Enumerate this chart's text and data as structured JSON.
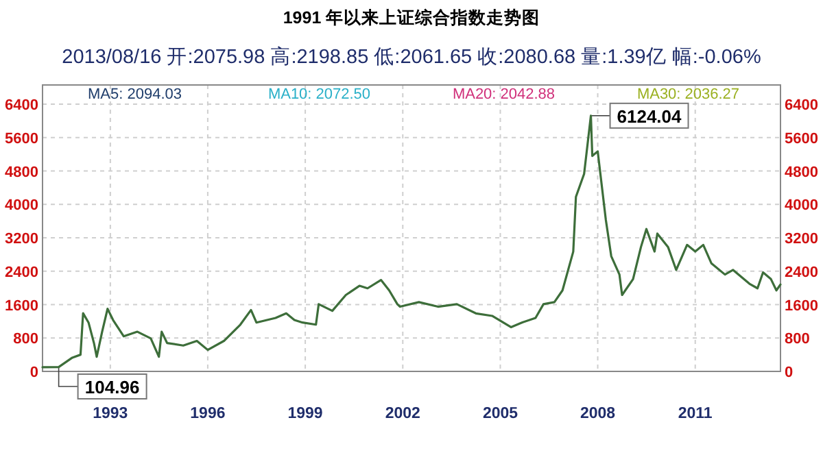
{
  "chart_data": {
    "type": "line",
    "title": "1991 年以来上证综合指数走势图",
    "subtitle": "2013/08/16 开:2075.98 高:2198.85 低:2061.65 收:2080.68 量:1.39亿 幅:-0.06%",
    "annotations": [
      "MA5: 2094.03",
      "MA10: 2072.50",
      "MA20: 2042.88",
      "MA30: 2036.27",
      {
        "text": "6124.04",
        "x": "2007-10-16",
        "y": 6124.04
      },
      {
        "text": "104.96",
        "x": "1991-06",
        "y": 104.96
      }
    ],
    "x": [
      "1990-12",
      "1991-06",
      "1991-11",
      "1992-02",
      "1992-03",
      "1992-05",
      "1992-07",
      "1992-08",
      "1992-10",
      "1992-12",
      "1993-02",
      "1993-06",
      "1993-11",
      "1994-04",
      "1994-07",
      "1994-08",
      "1994-10",
      "1995-04",
      "1995-09",
      "1996-01",
      "1996-07",
      "1997-01",
      "1997-05",
      "1997-07",
      "1998-02",
      "1998-06",
      "1998-09",
      "1998-12",
      "1999-05",
      "1999-06",
      "1999-11",
      "2000-04",
      "2000-09",
      "2000-12",
      "2001-05",
      "2001-08",
      "2001-11",
      "2001-12",
      "2002-07",
      "2003-02",
      "2003-09",
      "2004-04",
      "2004-10",
      "2005-05",
      "2005-09",
      "2006-02",
      "2006-05",
      "2006-09",
      "2006-12",
      "2007-04",
      "2007-05",
      "2007-08",
      "2007-10-16",
      "2007-11",
      "2008-01",
      "2008-04",
      "2008-06",
      "2008-09",
      "2008-10",
      "2009-02",
      "2009-05",
      "2009-07",
      "2009-10",
      "2009-11",
      "2010-03",
      "2010-06",
      "2010-10",
      "2011-01",
      "2011-04",
      "2011-07",
      "2011-12",
      "2012-03",
      "2012-09",
      "2012-12",
      "2013-02",
      "2013-05",
      "2013-07",
      "2013-08-16"
    ],
    "series": [
      {
        "color": "#3d6e3a",
        "values": [
          100,
          104.96,
          330,
          400,
          1392,
          1170,
          680,
          350,
          950,
          1500,
          1230,
          840,
          950,
          790,
          350,
          950,
          680,
          620,
          730,
          515,
          730,
          1120,
          1470,
          1170,
          1280,
          1390,
          1230,
          1170,
          1120,
          1610,
          1450,
          1830,
          2050,
          1990,
          2190,
          1940,
          1610,
          1550,
          1660,
          1550,
          1610,
          1390,
          1330,
          1060,
          1170,
          1280,
          1610,
          1660,
          1940,
          2870,
          4180,
          4730,
          6124.04,
          5160,
          5270,
          3630,
          2760,
          2320,
          1830,
          2210,
          2980,
          3410,
          2870,
          3300,
          2980,
          2430,
          3030,
          2870,
          3030,
          2590,
          2320,
          2430,
          2100,
          1990,
          2370,
          2210,
          1940,
          2080.68
        ]
      }
    ],
    "xlim": [
      "1990-12",
      "2013-08-16"
    ],
    "xticks": [
      "1993",
      "1996",
      "1999",
      "2002",
      "2005",
      "2008",
      "2011"
    ],
    "ylim": [
      0,
      6400
    ],
    "yticks": [
      0,
      800,
      1600,
      2400,
      3200,
      4000,
      4800,
      5600,
      6400
    ],
    "y2lim": [
      0,
      6400
    ],
    "y2ticks": [
      0,
      800,
      1600,
      2400,
      3200,
      4000,
      4800,
      5600,
      6400
    ],
    "grid": true,
    "marker": "none",
    "line_style": "solid"
  }
}
